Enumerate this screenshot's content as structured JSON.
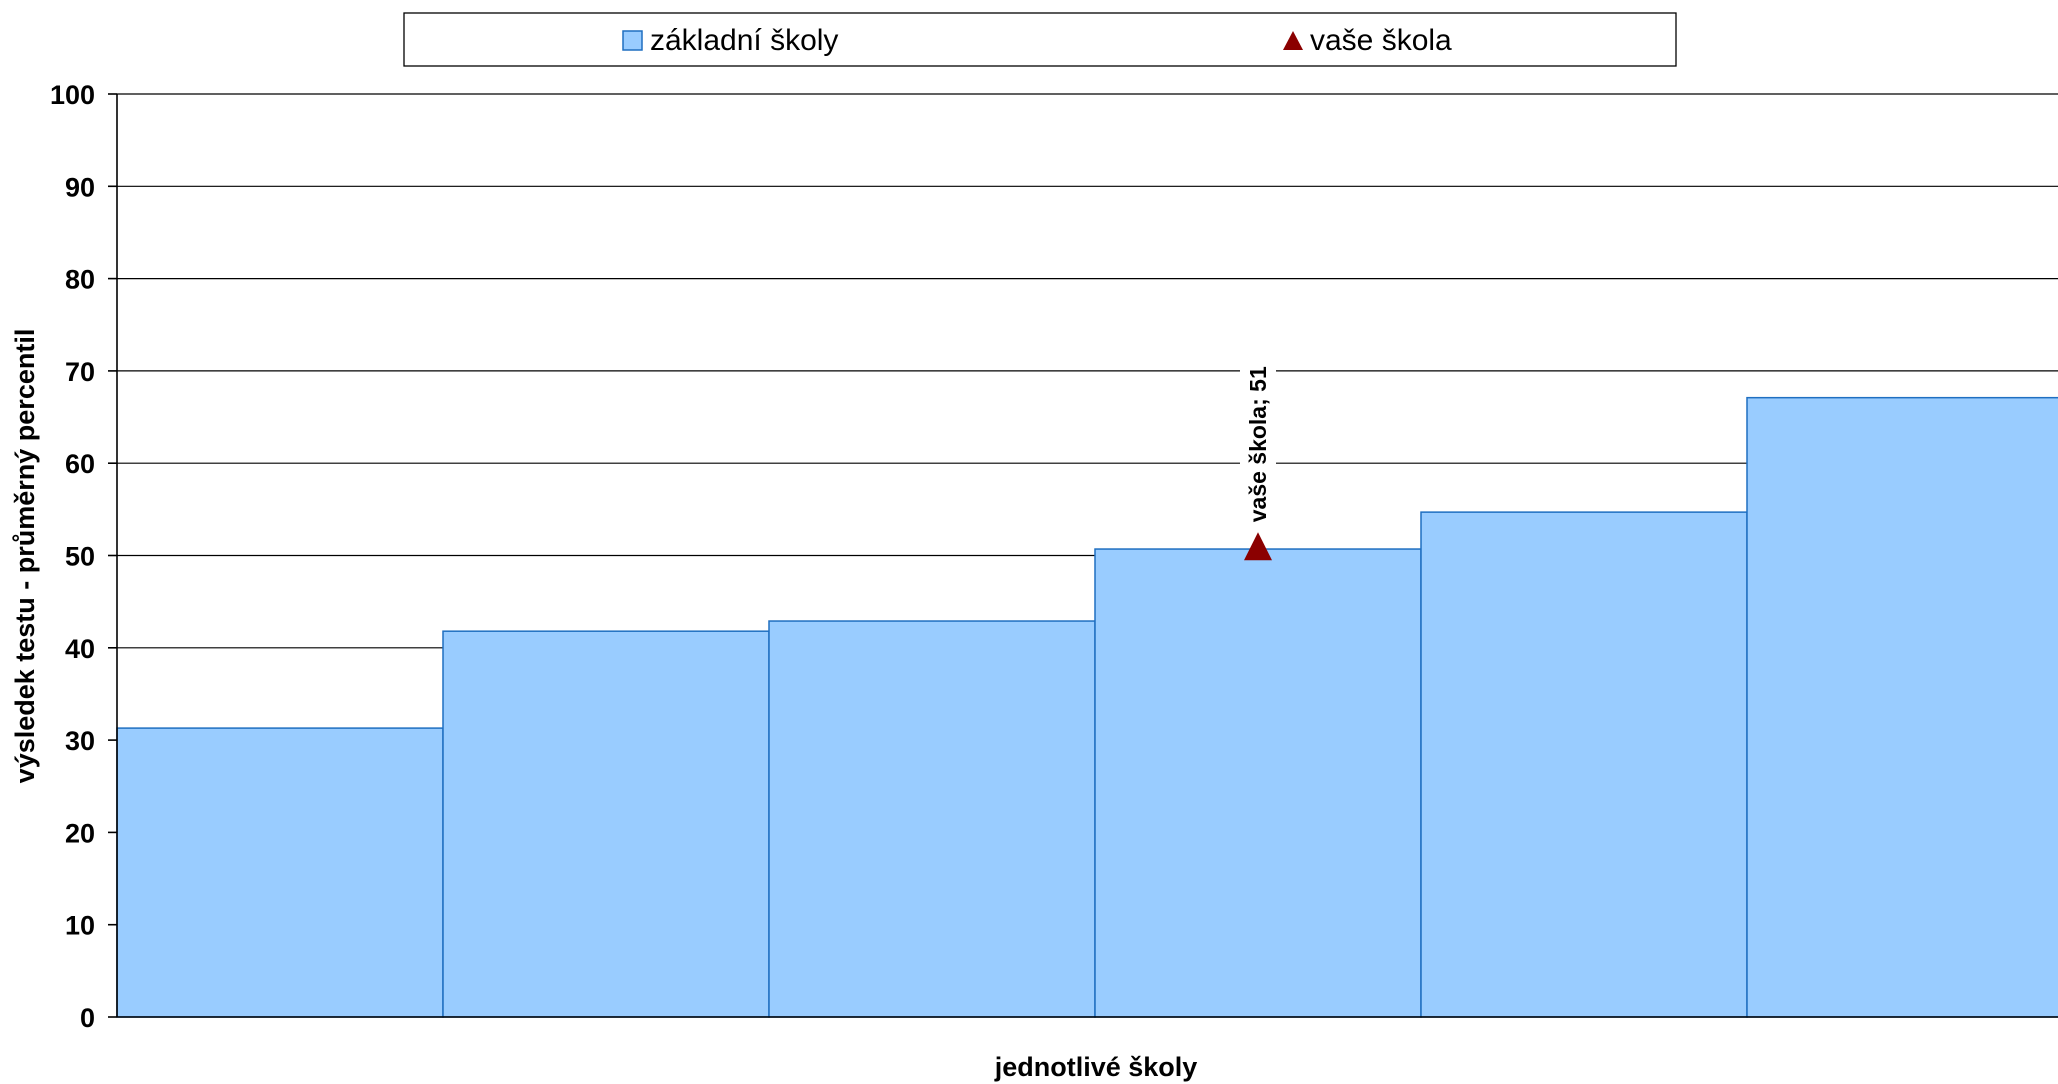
{
  "chart_data": {
    "type": "bar",
    "categories": [
      "",
      "",
      "",
      "",
      "",
      ""
    ],
    "series": [
      {
        "name": "základní školy",
        "values": [
          31.3,
          41.8,
          42.9,
          50.7,
          54.7,
          67.1
        ],
        "color": "#99ccff",
        "marker": "square"
      },
      {
        "name": "vaše škola",
        "point": {
          "category_index": 3,
          "value": 51
        },
        "color": "#8b0000",
        "marker": "triangle"
      }
    ],
    "point_label": "vaše škola; 51",
    "title": "",
    "xlabel": "jednotlivé školy",
    "ylabel": "výsledek testu - průměrný percentil",
    "ylim": [
      0,
      100
    ],
    "yticks": [
      "0",
      "10",
      "20",
      "30",
      "40",
      "50",
      "60",
      "70",
      "80",
      "90",
      "100"
    ],
    "grid": true,
    "legend_position": "top"
  }
}
